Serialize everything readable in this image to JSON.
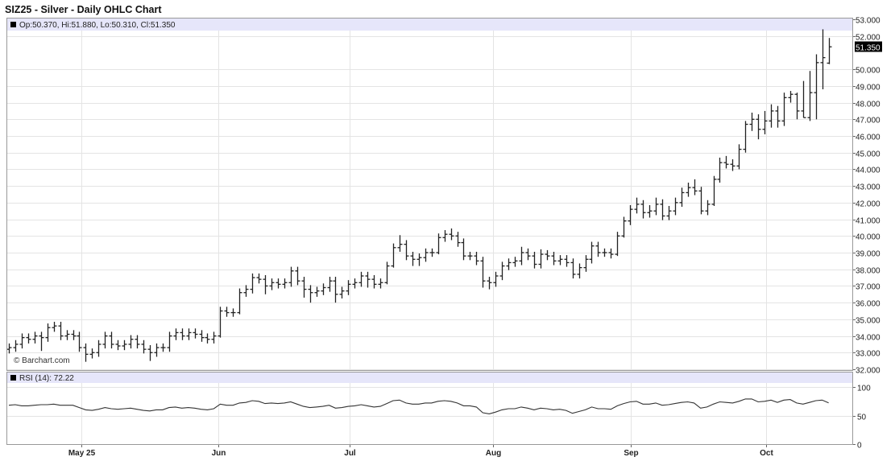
{
  "title": "SIZ25 - Silver - Daily OHLC Chart",
  "legend": "Op:50.370, Hi:51.880, Lo:50.310, Cl:51.350",
  "watermark": "© Barchart.com",
  "rsi_legend": "RSI (14): 72.22",
  "last_price_label": "51.350",
  "colors": {
    "bar": "#222222",
    "header_band": "#e6e6fa",
    "grid": "#e4e4e4",
    "rsi_line": "#333333",
    "last_tag_bg": "#000000"
  },
  "chart_data": [
    {
      "type": "ohlc",
      "ylim": [
        32,
        53
      ],
      "yticks": [
        "53.000",
        "52.000",
        "51.350",
        "50.000",
        "49.000",
        "48.000",
        "47.000",
        "46.000",
        "45.000",
        "44.000",
        "43.000",
        "42.000",
        "41.000",
        "40.000",
        "39.000",
        "38.000",
        "37.000",
        "36.000",
        "35.000",
        "34.000",
        "33.000",
        "32.000"
      ],
      "xticks": [
        {
          "label": "May 25",
          "bar": 11.3
        },
        {
          "label": "Jun",
          "bar": 32.7
        },
        {
          "label": "Jul",
          "bar": 53.2
        },
        {
          "label": "Aug",
          "bar": 75.6
        },
        {
          "label": "Sep",
          "bar": 97.1
        },
        {
          "label": "Oct",
          "bar": 118.3
        }
      ],
      "grid": true,
      "bars": [
        [
          33.2,
          33.55,
          32.95,
          33.3
        ],
        [
          33.3,
          33.75,
          33.05,
          33.5
        ],
        [
          33.5,
          34.15,
          33.25,
          33.9
        ],
        [
          33.9,
          34.15,
          33.55,
          33.8
        ],
        [
          33.8,
          34.25,
          33.55,
          34.0
        ],
        [
          34.0,
          34.25,
          33.1,
          33.9
        ],
        [
          33.9,
          34.75,
          33.65,
          34.5
        ],
        [
          34.5,
          34.85,
          34.25,
          34.6
        ],
        [
          34.6,
          34.85,
          33.75,
          34.0
        ],
        [
          34.0,
          34.35,
          33.75,
          34.1
        ],
        [
          34.1,
          34.35,
          33.75,
          34.0
        ],
        [
          34.0,
          34.25,
          33.05,
          33.3
        ],
        [
          33.3,
          33.55,
          32.45,
          32.9
        ],
        [
          32.9,
          33.25,
          32.65,
          33.0
        ],
        [
          33.0,
          33.75,
          32.75,
          33.5
        ],
        [
          33.5,
          34.25,
          33.25,
          34.0
        ],
        [
          34.0,
          34.25,
          33.25,
          33.5
        ],
        [
          33.5,
          33.75,
          33.15,
          33.4
        ],
        [
          33.4,
          33.75,
          33.15,
          33.5
        ],
        [
          33.5,
          34.05,
          33.25,
          33.8
        ],
        [
          33.8,
          34.05,
          33.25,
          33.5
        ],
        [
          33.5,
          33.75,
          32.95,
          33.2
        ],
        [
          33.2,
          33.45,
          32.5,
          33.0
        ],
        [
          33.0,
          33.55,
          32.75,
          33.3
        ],
        [
          33.3,
          33.55,
          33.05,
          33.3
        ],
        [
          33.3,
          34.25,
          33.05,
          34.0
        ],
        [
          34.0,
          34.45,
          33.75,
          34.2
        ],
        [
          34.2,
          34.45,
          33.75,
          34.0
        ],
        [
          34.0,
          34.45,
          33.75,
          34.2
        ],
        [
          34.2,
          34.45,
          33.85,
          34.1
        ],
        [
          34.1,
          34.35,
          33.65,
          33.9
        ],
        [
          33.9,
          34.15,
          33.55,
          33.8
        ],
        [
          33.8,
          34.25,
          33.55,
          34.0
        ],
        [
          34.0,
          35.75,
          33.9,
          35.5
        ],
        [
          35.5,
          35.75,
          35.15,
          35.4
        ],
        [
          35.4,
          35.65,
          35.15,
          35.4
        ],
        [
          35.4,
          36.85,
          35.3,
          36.6
        ],
        [
          36.6,
          37.05,
          36.35,
          36.8
        ],
        [
          36.8,
          37.75,
          36.55,
          37.5
        ],
        [
          37.5,
          37.75,
          37.15,
          37.4
        ],
        [
          37.4,
          37.65,
          36.5,
          37.0
        ],
        [
          37.0,
          37.45,
          36.75,
          37.2
        ],
        [
          37.2,
          37.45,
          36.85,
          37.1
        ],
        [
          37.1,
          37.45,
          36.85,
          37.2
        ],
        [
          37.2,
          38.15,
          36.95,
          37.9
        ],
        [
          37.9,
          38.15,
          37.05,
          37.3
        ],
        [
          37.3,
          37.55,
          36.3,
          36.8
        ],
        [
          36.8,
          37.05,
          36.0,
          36.6
        ],
        [
          36.6,
          36.95,
          36.35,
          36.7
        ],
        [
          36.7,
          37.15,
          36.45,
          36.9
        ],
        [
          36.9,
          37.55,
          36.65,
          37.3
        ],
        [
          37.3,
          37.55,
          36.0,
          36.5
        ],
        [
          36.5,
          36.95,
          36.25,
          36.7
        ],
        [
          36.7,
          37.35,
          36.45,
          37.1
        ],
        [
          37.1,
          37.45,
          36.85,
          37.2
        ],
        [
          37.2,
          37.85,
          36.95,
          37.6
        ],
        [
          37.6,
          37.85,
          36.9,
          37.4
        ],
        [
          37.4,
          37.65,
          36.85,
          37.1
        ],
        [
          37.1,
          37.45,
          36.85,
          37.2
        ],
        [
          37.2,
          38.45,
          37.1,
          38.2
        ],
        [
          38.2,
          39.55,
          38.1,
          39.3
        ],
        [
          39.3,
          40.05,
          39.05,
          39.5
        ],
        [
          39.5,
          39.75,
          38.55,
          38.8
        ],
        [
          38.8,
          39.05,
          38.2,
          38.6
        ],
        [
          38.6,
          38.95,
          38.2,
          38.7
        ],
        [
          38.7,
          39.25,
          38.45,
          39.0
        ],
        [
          39.0,
          39.25,
          38.75,
          39.0
        ],
        [
          39.0,
          40.15,
          38.9,
          39.9
        ],
        [
          39.9,
          40.35,
          39.65,
          40.1
        ],
        [
          40.1,
          40.45,
          39.75,
          40.0
        ],
        [
          40.0,
          40.25,
          39.35,
          39.6
        ],
        [
          39.6,
          39.85,
          38.55,
          38.8
        ],
        [
          38.8,
          39.05,
          38.55,
          38.8
        ],
        [
          38.8,
          39.05,
          38.25,
          38.5
        ],
        [
          38.5,
          38.75,
          36.9,
          37.3
        ],
        [
          37.3,
          37.55,
          36.8,
          37.2
        ],
        [
          37.2,
          37.85,
          36.95,
          37.6
        ],
        [
          37.6,
          38.45,
          37.35,
          38.2
        ],
        [
          38.2,
          38.65,
          37.95,
          38.4
        ],
        [
          38.4,
          38.75,
          38.15,
          38.5
        ],
        [
          38.5,
          39.35,
          38.25,
          39.0
        ],
        [
          39.0,
          39.25,
          38.55,
          38.8
        ],
        [
          38.8,
          39.05,
          38.05,
          38.3
        ],
        [
          38.3,
          39.2,
          38.05,
          38.9
        ],
        [
          38.9,
          39.15,
          38.55,
          38.8
        ],
        [
          38.8,
          39.05,
          38.25,
          38.5
        ],
        [
          38.5,
          38.85,
          38.25,
          38.6
        ],
        [
          38.6,
          38.85,
          38.15,
          38.4
        ],
        [
          38.4,
          38.65,
          37.45,
          37.7
        ],
        [
          37.7,
          38.35,
          37.45,
          38.1
        ],
        [
          38.1,
          38.85,
          37.85,
          38.6
        ],
        [
          38.6,
          39.65,
          38.35,
          39.4
        ],
        [
          39.4,
          39.65,
          38.75,
          39.0
        ],
        [
          39.0,
          39.25,
          38.75,
          39.0
        ],
        [
          39.0,
          39.25,
          38.65,
          38.9
        ],
        [
          38.9,
          40.25,
          38.8,
          40.0
        ],
        [
          40.0,
          41.15,
          39.9,
          40.9
        ],
        [
          40.9,
          41.85,
          40.65,
          41.6
        ],
        [
          41.6,
          42.3,
          41.35,
          41.9
        ],
        [
          41.9,
          42.15,
          41.05,
          41.4
        ],
        [
          41.4,
          41.85,
          41.1,
          41.5
        ],
        [
          41.5,
          42.3,
          41.25,
          41.9
        ],
        [
          41.9,
          42.2,
          40.95,
          41.2
        ],
        [
          41.2,
          41.8,
          40.95,
          41.5
        ],
        [
          41.5,
          42.3,
          41.25,
          42.0
        ],
        [
          42.0,
          42.9,
          41.75,
          42.6
        ],
        [
          42.6,
          43.2,
          42.35,
          42.9
        ],
        [
          42.9,
          43.4,
          42.45,
          42.7
        ],
        [
          42.7,
          42.95,
          41.3,
          41.5
        ],
        [
          41.5,
          42.15,
          41.25,
          41.9
        ],
        [
          41.9,
          43.6,
          41.8,
          43.4
        ],
        [
          43.4,
          44.7,
          43.2,
          44.4
        ],
        [
          44.4,
          44.8,
          44.05,
          44.3
        ],
        [
          44.3,
          44.6,
          43.9,
          44.2
        ],
        [
          44.2,
          45.5,
          44.0,
          45.2
        ],
        [
          45.2,
          46.9,
          45.0,
          46.7
        ],
        [
          46.7,
          47.4,
          46.3,
          47.0
        ],
        [
          47.0,
          47.3,
          45.8,
          46.4
        ],
        [
          46.4,
          47.5,
          46.1,
          46.9
        ],
        [
          46.9,
          47.9,
          46.5,
          47.5
        ],
        [
          47.5,
          47.8,
          46.5,
          46.9
        ],
        [
          46.9,
          48.6,
          46.6,
          48.3
        ],
        [
          48.3,
          48.7,
          48.0,
          48.5
        ],
        [
          48.5,
          48.6,
          47.0,
          47.5
        ],
        [
          47.5,
          49.3,
          47.1,
          47.1
        ],
        [
          47.1,
          49.9,
          46.9,
          48.6
        ],
        [
          48.6,
          50.9,
          47.0,
          50.4
        ],
        [
          50.4,
          52.4,
          48.8,
          50.7
        ],
        [
          50.37,
          51.88,
          50.31,
          51.35
        ]
      ]
    },
    {
      "type": "line",
      "name": "RSI (14)",
      "ylim": [
        0,
        100
      ],
      "yticks": [
        "100",
        "50",
        "0"
      ],
      "values": [
        68,
        69,
        67,
        67,
        68,
        69,
        69,
        70,
        68,
        68,
        68,
        64,
        60,
        59,
        61,
        64,
        62,
        61,
        62,
        63,
        61,
        59,
        58,
        60,
        60,
        64,
        65,
        63,
        64,
        63,
        61,
        60,
        62,
        70,
        68,
        68,
        72,
        73,
        76,
        75,
        71,
        72,
        71,
        72,
        74,
        70,
        66,
        64,
        65,
        66,
        68,
        63,
        64,
        66,
        67,
        69,
        67,
        65,
        66,
        71,
        76,
        77,
        72,
        70,
        70,
        72,
        72,
        75,
        76,
        75,
        72,
        67,
        67,
        65,
        55,
        53,
        56,
        60,
        62,
        62,
        65,
        63,
        60,
        63,
        62,
        60,
        61,
        59,
        54,
        57,
        60,
        65,
        62,
        62,
        61,
        67,
        71,
        74,
        75,
        70,
        70,
        72,
        68,
        69,
        71,
        73,
        74,
        72,
        63,
        65,
        70,
        74,
        73,
        72,
        75,
        79,
        79,
        74,
        75,
        77,
        73,
        77,
        78,
        72,
        70,
        73,
        76,
        77,
        72.22
      ]
    }
  ]
}
